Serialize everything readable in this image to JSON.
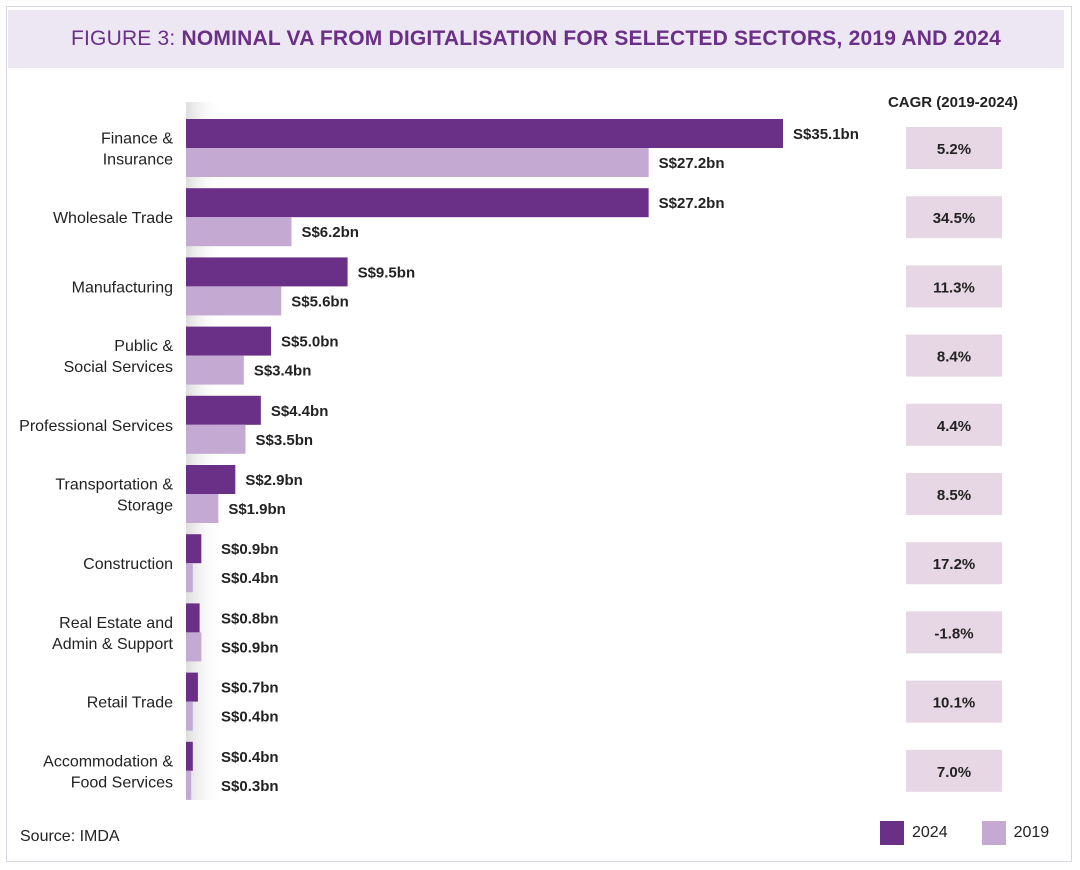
{
  "title": {
    "prefix": "FIGURE 3: ",
    "main": "NOMINAL VA FROM DIGITALISATION FOR SELECTED SECTORS, 2019 AND 2024"
  },
  "cagr_header": "CAGR (2019-2024)",
  "source": "Source: IMDA",
  "colors": {
    "y2024": "#6a2f86",
    "y2019": "#c4a9d3",
    "cagr_box": "#e7d6e3"
  },
  "legend": [
    {
      "label": "2024",
      "color": "#6a2f86"
    },
    {
      "label": "2019",
      "color": "#c4a9d3"
    }
  ],
  "chart_data": {
    "type": "bar",
    "orientation": "horizontal",
    "title": "FIGURE 3: NOMINAL VA FROM DIGITALISATION FOR SELECTED SECTORS, 2019 AND 2024",
    "xlabel": "",
    "ylabel": "",
    "xlim": [
      0,
      35.1
    ],
    "units": "S$ bn",
    "categories": [
      [
        "Finance &",
        "Insurance"
      ],
      [
        "Wholesale Trade"
      ],
      [
        "Manufacturing"
      ],
      [
        "Public &",
        "Social Services"
      ],
      [
        "Professional Services"
      ],
      [
        "Transportation &",
        "Storage"
      ],
      [
        "Construction"
      ],
      [
        "Real Estate and",
        "Admin & Support"
      ],
      [
        "Retail Trade"
      ],
      [
        "Accommodation &",
        "Food Services"
      ]
    ],
    "series": [
      {
        "name": "2024",
        "values": [
          35.1,
          27.2,
          9.5,
          5.0,
          4.4,
          2.9,
          0.9,
          0.8,
          0.7,
          0.4
        ],
        "labels": [
          "S$35.1bn",
          "S$27.2bn",
          "S$9.5bn",
          "S$5.0bn",
          "S$4.4bn",
          "S$2.9bn",
          "S$0.9bn",
          "S$0.8bn",
          "S$0.7bn",
          "S$0.4bn"
        ]
      },
      {
        "name": "2019",
        "values": [
          27.2,
          6.2,
          5.6,
          3.4,
          3.5,
          1.9,
          0.4,
          0.9,
          0.4,
          0.3
        ],
        "labels": [
          "S$27.2bn",
          "S$6.2bn",
          "S$5.6bn",
          "S$3.4bn",
          "S$3.5bn",
          "S$1.9bn",
          "S$0.4bn",
          "S$0.9bn",
          "S$0.4bn",
          "S$0.3bn"
        ]
      }
    ],
    "cagr": [
      "5.2%",
      "34.5%",
      "11.3%",
      "8.4%",
      "4.4%",
      "8.5%",
      "17.2%",
      "-1.8%",
      "10.1%",
      "7.0%"
    ],
    "legend_position": "bottom-right"
  }
}
